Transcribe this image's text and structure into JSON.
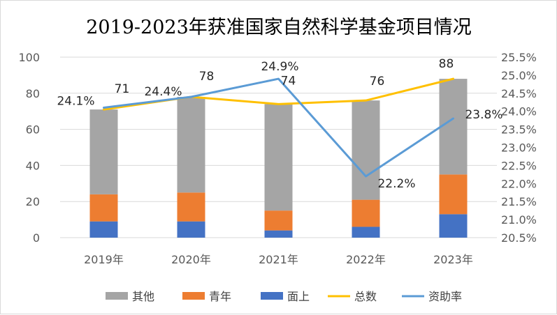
{
  "chart_data": {
    "type": "bar",
    "title": "2019-2023年获准国家自然科学基金项目情况",
    "categories": [
      "2019年",
      "2020年",
      "2021年",
      "2022年",
      "2023年"
    ],
    "ylim": [
      0,
      100
    ],
    "y_ticks": [
      "0",
      "20",
      "40",
      "60",
      "80",
      "100"
    ],
    "y2lim": [
      20.5,
      25.5
    ],
    "y2_ticks": [
      "20.5%",
      "21.0%",
      "21.5%",
      "22.0%",
      "22.5%",
      "23.0%",
      "23.5%",
      "24.0%",
      "24.5%",
      "25.0%",
      "25.5%"
    ],
    "grid": true,
    "legend_position": "bottom",
    "stacked_series": [
      {
        "name": "面上",
        "values": [
          9,
          9,
          4,
          6,
          13
        ],
        "color": "#4472c4"
      },
      {
        "name": "青年",
        "values": [
          15,
          16,
          11,
          15,
          22
        ],
        "color": "#ed7d31"
      },
      {
        "name": "其他",
        "values": [
          47,
          53,
          59,
          55,
          53
        ],
        "color": "#a5a5a5"
      }
    ],
    "line_series": [
      {
        "name": "总数",
        "values": [
          71,
          78,
          74,
          76,
          88
        ],
        "labels": [
          "71",
          "78",
          "74",
          "76",
          "88"
        ],
        "axis": "left",
        "color": "#ffc000"
      },
      {
        "name": "资助率",
        "values": [
          24.1,
          24.4,
          24.9,
          22.2,
          23.8
        ],
        "labels": [
          "24.1%",
          "24.4%",
          "24.9%",
          "22.2%",
          "23.8%"
        ],
        "axis": "right",
        "color": "#5b9bd5"
      }
    ],
    "legend": [
      {
        "name": "其他",
        "kind": "box",
        "color": "#a5a5a5"
      },
      {
        "name": "青年",
        "kind": "box",
        "color": "#ed7d31"
      },
      {
        "name": "面上",
        "kind": "box",
        "color": "#4472c4"
      },
      {
        "name": "总数",
        "kind": "line",
        "color": "#ffc000"
      },
      {
        "name": "资助率",
        "kind": "line",
        "color": "#5b9bd5"
      }
    ]
  }
}
